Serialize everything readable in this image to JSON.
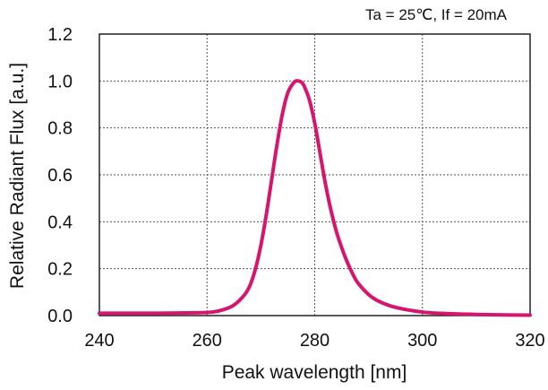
{
  "chart_data": {
    "type": "line",
    "annotation": "Ta = 25℃,  If = 20mA",
    "xlabel": "Peak wavelength [nm]",
    "ylabel": "Relative Radiant Flux [a.u.]",
    "xlim": [
      240,
      320
    ],
    "ylim": [
      0,
      1.2
    ],
    "x_ticks": [
      "240",
      "260",
      "280",
      "300",
      "320"
    ],
    "y_ticks": [
      "0.0",
      "0.2",
      "0.4",
      "0.6",
      "0.8",
      "1.0",
      "1.2"
    ],
    "grid": true,
    "series": [
      {
        "color": "#d6166e",
        "x": [
          240,
          250,
          258,
          261,
          263,
          265,
          267,
          268,
          269,
          270,
          271,
          272,
          273,
          274,
          275,
          276,
          276.5,
          277,
          277.5,
          278,
          279,
          280,
          281,
          282,
          283,
          284,
          285,
          286,
          287,
          288,
          290,
          292,
          295,
          300,
          305,
          310,
          315,
          320
        ],
        "y": [
          0.01,
          0.01,
          0.012,
          0.015,
          0.025,
          0.045,
          0.09,
          0.13,
          0.2,
          0.3,
          0.43,
          0.58,
          0.73,
          0.86,
          0.95,
          0.99,
          1.0,
          1.0,
          0.995,
          0.98,
          0.92,
          0.82,
          0.69,
          0.56,
          0.45,
          0.36,
          0.29,
          0.23,
          0.18,
          0.14,
          0.09,
          0.06,
          0.035,
          0.015,
          0.008,
          0.005,
          0.003,
          0.002
        ]
      }
    ]
  }
}
